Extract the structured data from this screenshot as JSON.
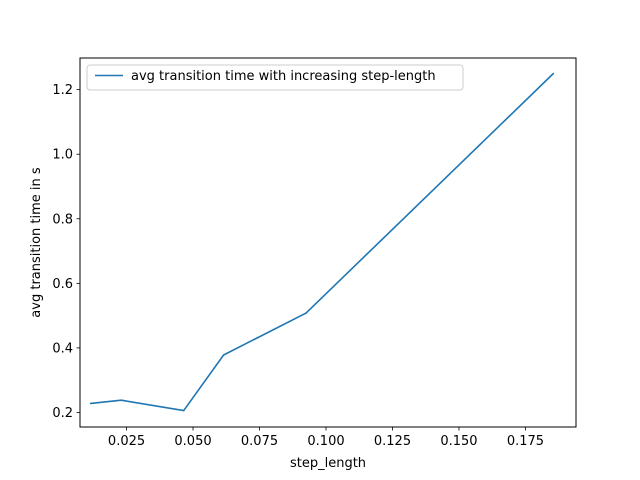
{
  "chart_data": {
    "type": "line",
    "title": "",
    "xlabel": "step_length",
    "ylabel": "avg transition time in s",
    "xlim": [
      0.0075,
      0.194
    ],
    "ylim": [
      0.155,
      1.298
    ],
    "xticks": [
      0.025,
      0.05,
      0.075,
      0.1,
      0.125,
      0.15,
      0.175
    ],
    "xtick_labels": [
      "0.025",
      "0.050",
      "0.075",
      "0.100",
      "0.125",
      "0.150",
      "0.175"
    ],
    "yticks": [
      0.2,
      0.4,
      0.6,
      0.8,
      1.0,
      1.2
    ],
    "ytick_labels": [
      "0.2",
      "0.4",
      "0.6",
      "0.8",
      "1.0",
      "1.2"
    ],
    "grid": false,
    "legend_position": "top-left",
    "series": [
      {
        "name": "avg transition time with increasing step-length",
        "color": "#1f77b4",
        "x": [
          0.0115,
          0.023,
          0.0465,
          0.0615,
          0.0925,
          0.1855
        ],
        "y": [
          0.228,
          0.238,
          0.206,
          0.378,
          0.508,
          1.25
        ]
      }
    ]
  }
}
